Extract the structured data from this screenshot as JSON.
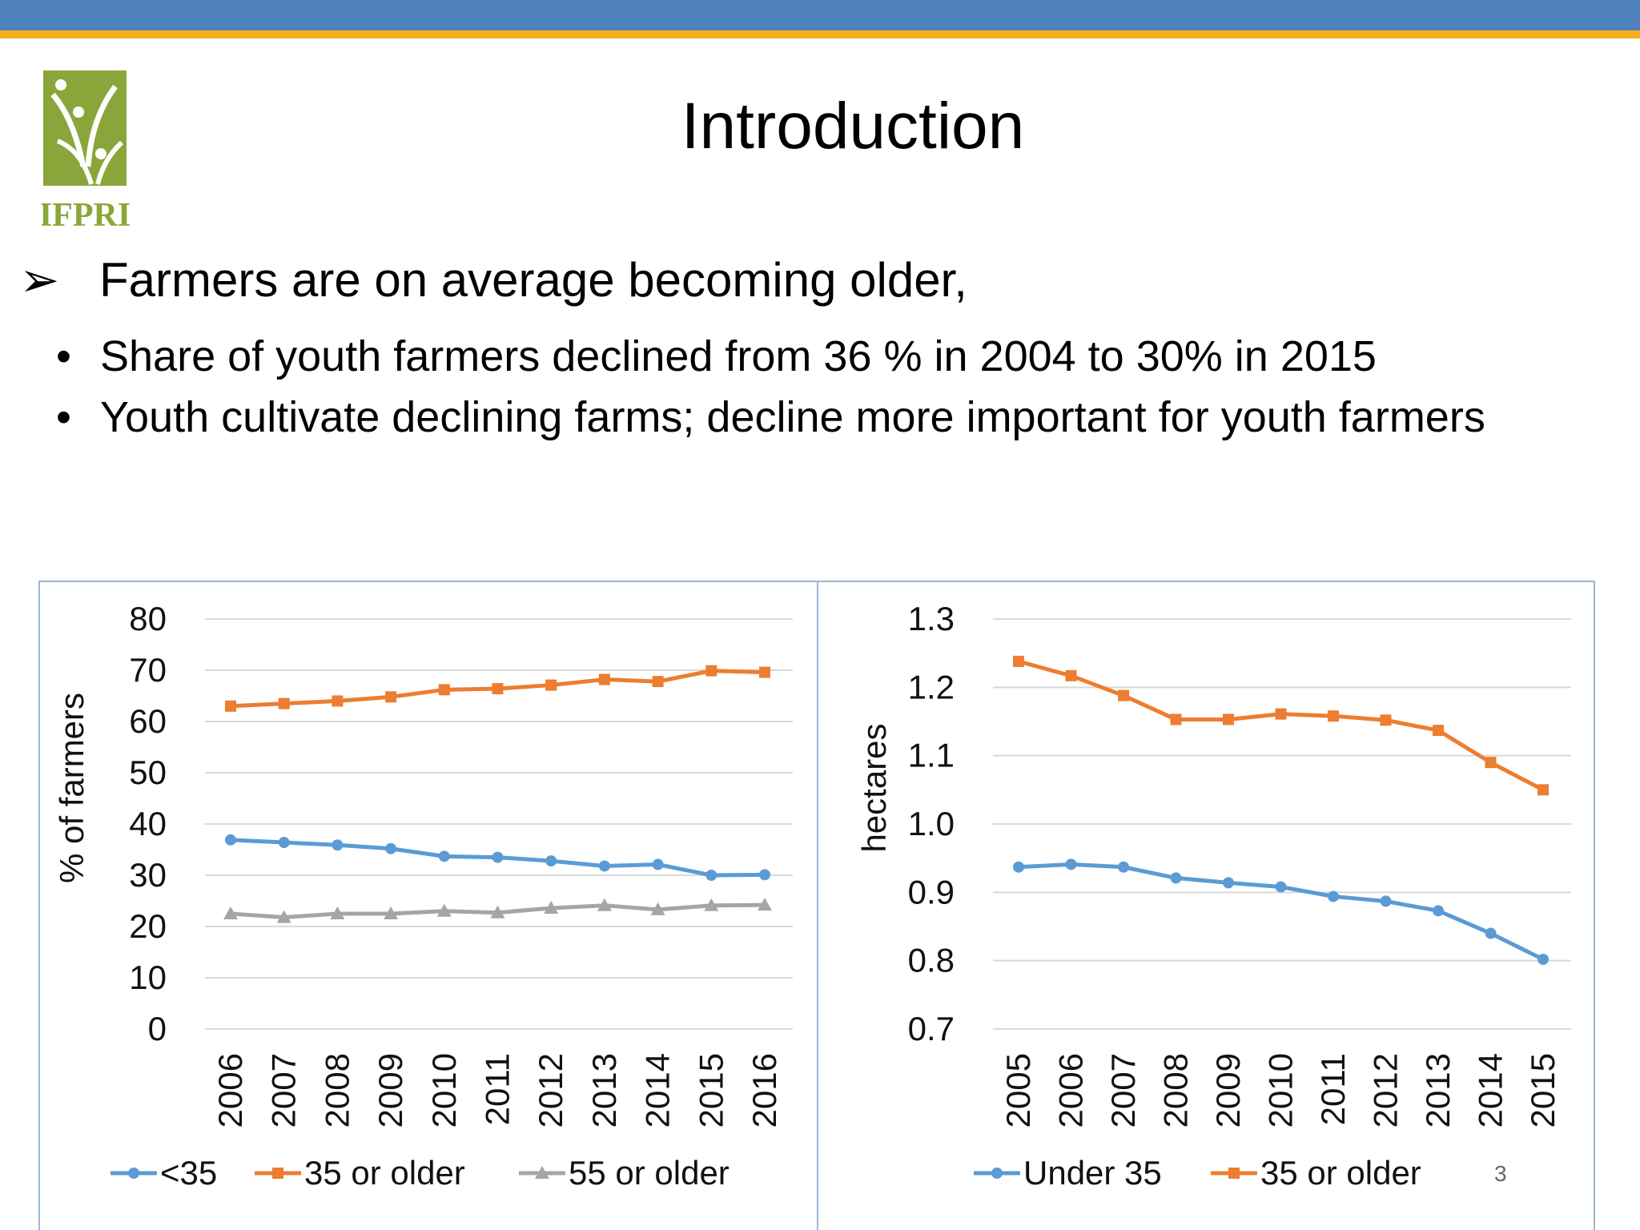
{
  "slide": {
    "title": "Introduction",
    "logo_text": "IFPRI",
    "bullet": "Farmers are on average becoming older,",
    "sub_bullets": [
      "Share of youth farmers declined from 36 % in 2004 to 30% in 2015",
      "Youth cultivate declining farms; decline more important for youth farmers"
    ],
    "slide_number": "3",
    "colors": {
      "top_bar": "#4f81bd",
      "accent_bar": "#f5b01c",
      "logo_green": "#8aa63a"
    }
  },
  "chart_data": [
    {
      "type": "line",
      "title": "",
      "ylabel": "% of farmers",
      "xlabel": "",
      "ylim": [
        0,
        80
      ],
      "yticks": [
        0,
        10,
        20,
        30,
        40,
        50,
        60,
        70,
        80
      ],
      "categories": [
        "2006",
        "2007",
        "2008",
        "2009",
        "2010",
        "2011",
        "2012",
        "2013",
        "2014",
        "2015",
        "2016"
      ],
      "grid": true,
      "legend_position": "bottom",
      "series": [
        {
          "name": "<35",
          "color": "#5b9bd5",
          "marker": "circle",
          "values": [
            36.9,
            36.4,
            35.9,
            35.2,
            33.7,
            33.5,
            32.8,
            31.8,
            32.1,
            30.0,
            30.1
          ]
        },
        {
          "name": "35 or older",
          "color": "#ed7d31",
          "marker": "square",
          "values": [
            63.0,
            63.5,
            64.0,
            64.8,
            66.2,
            66.4,
            67.1,
            68.2,
            67.8,
            69.9,
            69.6
          ]
        },
        {
          "name": "55 or older",
          "color": "#a5a5a5",
          "marker": "triangle",
          "values": [
            22.5,
            21.8,
            22.5,
            22.5,
            23.0,
            22.7,
            23.6,
            24.1,
            23.3,
            24.1,
            24.2
          ]
        }
      ]
    },
    {
      "type": "line",
      "title": "",
      "ylabel": "hectares",
      "xlabel": "",
      "ylim": [
        0.7,
        1.3
      ],
      "yticks": [
        0.7,
        0.8,
        0.9,
        1.0,
        1.1,
        1.2,
        1.3
      ],
      "categories": [
        "2005",
        "2006",
        "2007",
        "2008",
        "2009",
        "2010",
        "2011",
        "2012",
        "2013",
        "2014",
        "2015"
      ],
      "grid": true,
      "legend_position": "bottom",
      "series": [
        {
          "name": "Under 35",
          "color": "#5b9bd5",
          "marker": "circle",
          "values": [
            0.937,
            0.941,
            0.937,
            0.921,
            0.914,
            0.908,
            0.894,
            0.887,
            0.873,
            0.84,
            0.802
          ]
        },
        {
          "name": "35 or older",
          "color": "#ed7d31",
          "marker": "square",
          "values": [
            1.238,
            1.217,
            1.188,
            1.153,
            1.153,
            1.161,
            1.158,
            1.152,
            1.137,
            1.09,
            1.05
          ]
        }
      ]
    }
  ]
}
